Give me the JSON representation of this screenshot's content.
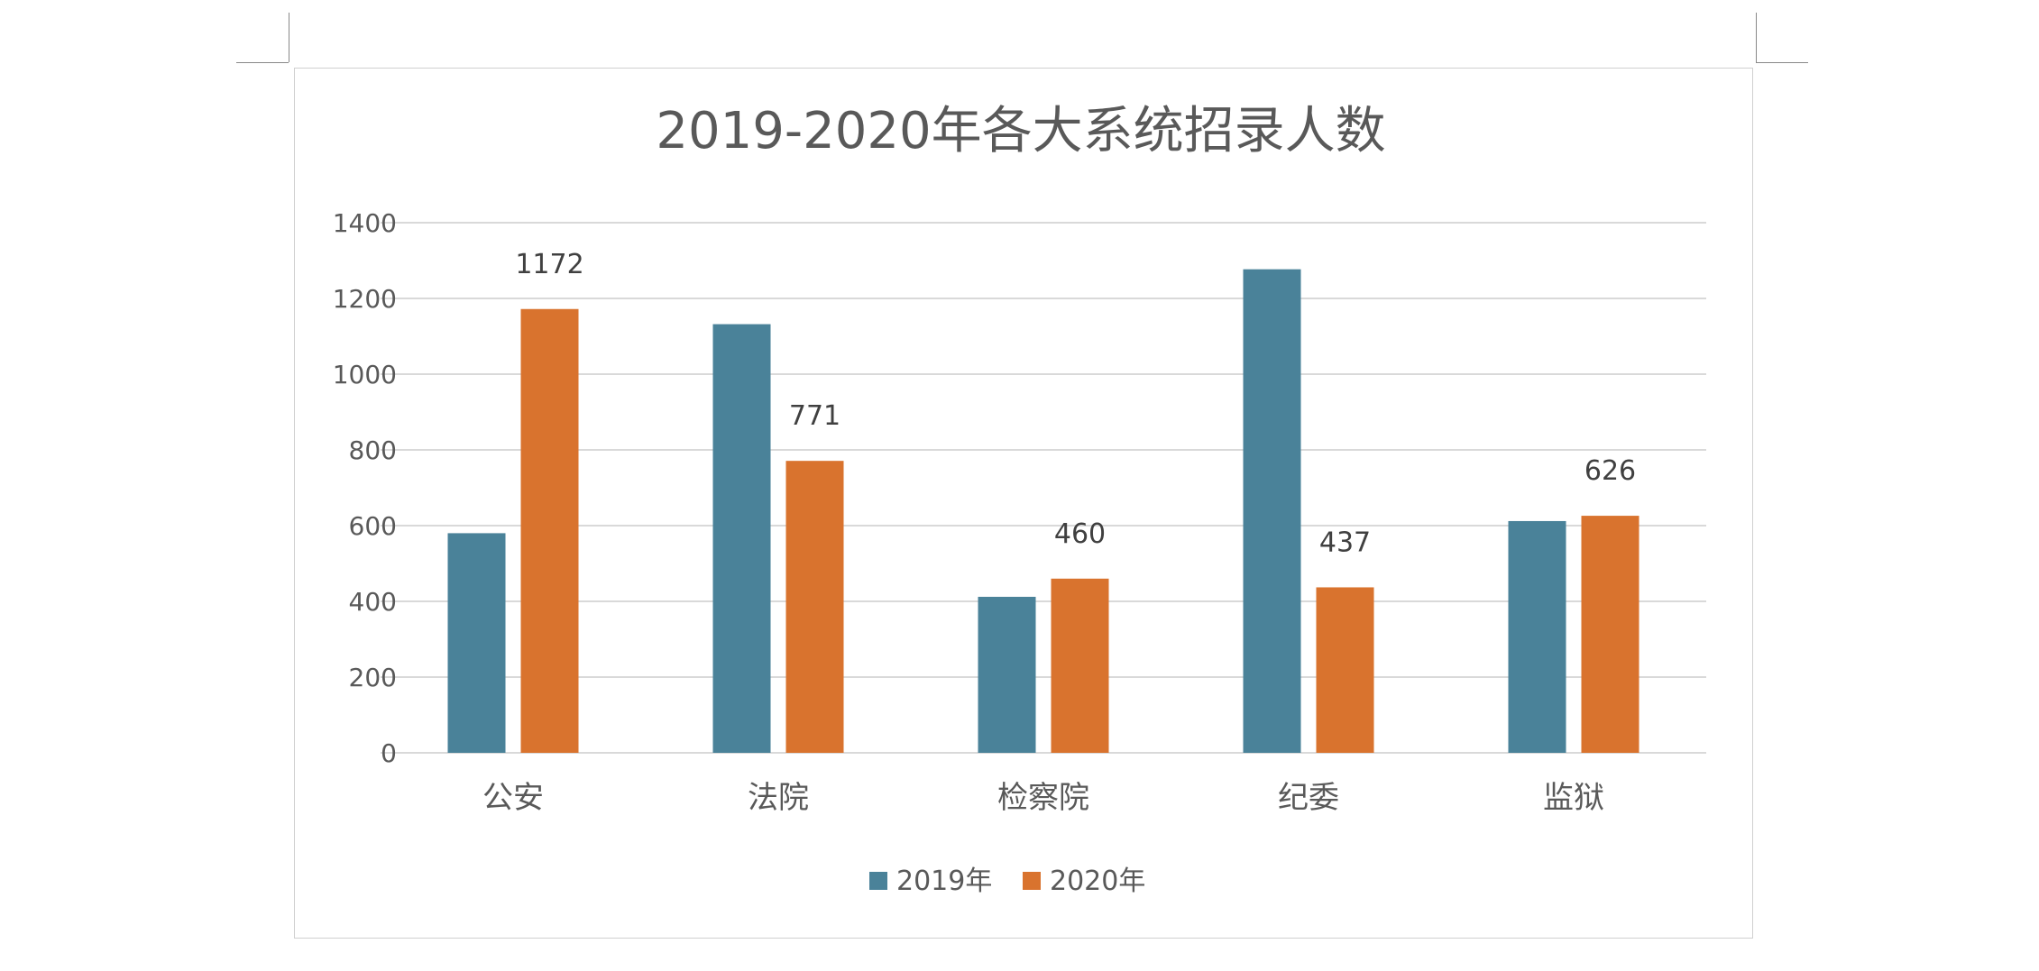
{
  "chart_data": {
    "type": "bar",
    "title": "2019-2020年各大系统招录人数",
    "categories": [
      "公安",
      "法院",
      "检察院",
      "纪委",
      "监狱"
    ],
    "series": [
      {
        "name": "2019年",
        "values": [
          580,
          1132,
          412,
          1277,
          612
        ],
        "color": "#4a8299",
        "labels": [
          null,
          null,
          null,
          null,
          null
        ]
      },
      {
        "name": "2020年",
        "values": [
          1172,
          771,
          460,
          437,
          626
        ],
        "color": "#d9732e",
        "labels": [
          "1172",
          "771",
          "460",
          "437",
          "626"
        ]
      }
    ],
    "ylim": [
      0,
      1400
    ],
    "yticks": [
      "0",
      "200",
      "400",
      "600",
      "800",
      "1000",
      "1200",
      "1400"
    ],
    "grid": true,
    "legend": "bottom"
  }
}
